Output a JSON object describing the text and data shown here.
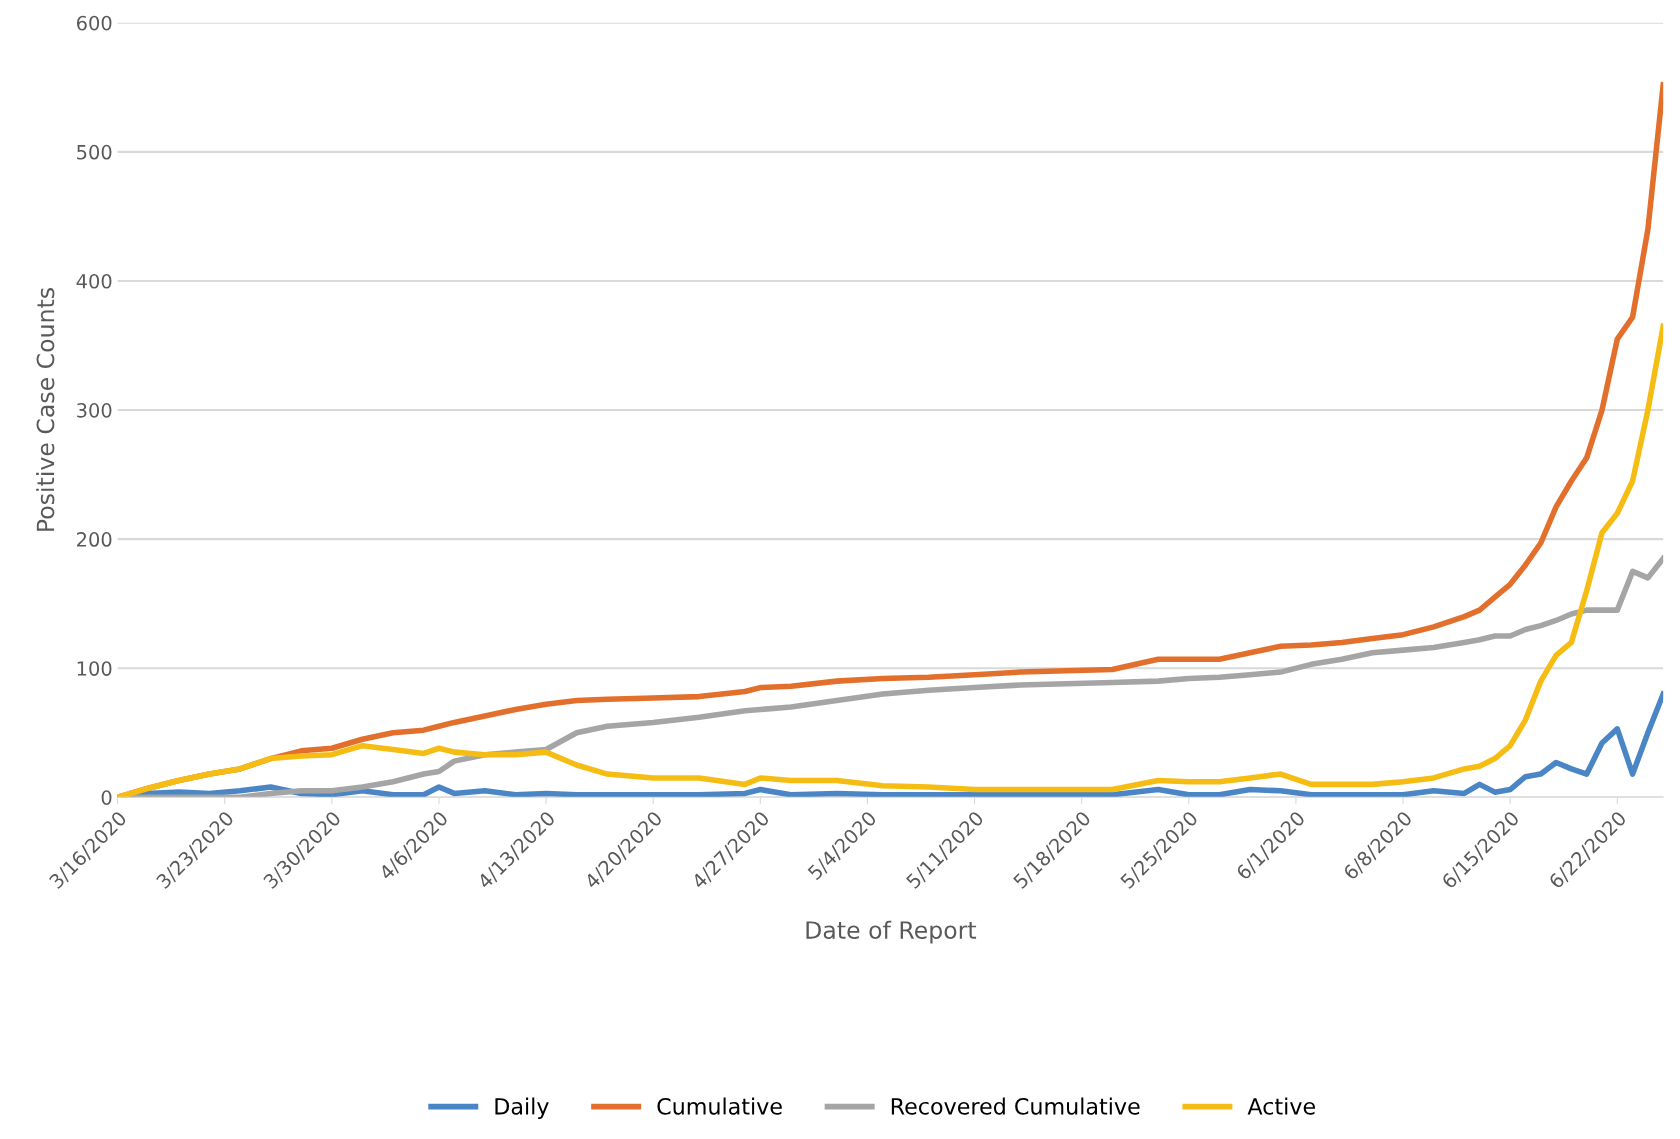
{
  "chart_data": {
    "type": "line",
    "xlabel": "Date of Report",
    "ylabel": "Positive Case Counts",
    "x": [
      "2020-03-16",
      "2020-03-18",
      "2020-03-20",
      "2020-03-22",
      "2020-03-24",
      "2020-03-26",
      "2020-03-28",
      "2020-03-30",
      "2020-04-01",
      "2020-04-03",
      "2020-04-05",
      "2020-04-06",
      "2020-04-07",
      "2020-04-09",
      "2020-04-11",
      "2020-04-13",
      "2020-04-15",
      "2020-04-17",
      "2020-04-20",
      "2020-04-23",
      "2020-04-26",
      "2020-04-27",
      "2020-04-29",
      "2020-05-02",
      "2020-05-05",
      "2020-05-08",
      "2020-05-11",
      "2020-05-14",
      "2020-05-17",
      "2020-05-20",
      "2020-05-23",
      "2020-05-25",
      "2020-05-27",
      "2020-05-29",
      "2020-05-31",
      "2020-06-02",
      "2020-06-04",
      "2020-06-06",
      "2020-06-08",
      "2020-06-10",
      "2020-06-12",
      "2020-06-13",
      "2020-06-14",
      "2020-06-15",
      "2020-06-16",
      "2020-06-17",
      "2020-06-18",
      "2020-06-19",
      "2020-06-20",
      "2020-06-21",
      "2020-06-22",
      "2020-06-23",
      "2020-06-24",
      "2020-06-25"
    ],
    "series": [
      {
        "name": "Daily",
        "color": "#4a86c5",
        "values": [
          0,
          3,
          4,
          3,
          5,
          8,
          3,
          2,
          5,
          2,
          2,
          8,
          3,
          5,
          2,
          3,
          2,
          2,
          2,
          2,
          3,
          6,
          2,
          3,
          2,
          2,
          2,
          2,
          2,
          2,
          6,
          2,
          2,
          6,
          5,
          2,
          2,
          2,
          2,
          5,
          3,
          10,
          4,
          6,
          16,
          18,
          27,
          22,
          18,
          42,
          53,
          18,
          50,
          80
        ]
      },
      {
        "name": "Cumulative",
        "color": "#e2702c",
        "values": [
          0,
          7,
          13,
          18,
          22,
          30,
          36,
          38,
          45,
          50,
          52,
          55,
          58,
          63,
          68,
          72,
          75,
          76,
          77,
          78,
          82,
          85,
          86,
          90,
          92,
          93,
          95,
          97,
          98,
          99,
          107,
          107,
          107,
          112,
          117,
          118,
          120,
          123,
          126,
          132,
          140,
          145,
          155,
          165,
          180,
          197,
          225,
          245,
          263,
          300,
          355,
          372,
          440,
          552
        ]
      },
      {
        "name": "Recovered Cumulative",
        "color": "#a5a5a5",
        "values": [
          0,
          0,
          0,
          0,
          0,
          3,
          5,
          5,
          8,
          12,
          18,
          20,
          28,
          33,
          35,
          37,
          50,
          55,
          58,
          62,
          67,
          68,
          70,
          75,
          80,
          83,
          85,
          87,
          88,
          89,
          90,
          92,
          93,
          95,
          97,
          103,
          107,
          112,
          114,
          116,
          120,
          122,
          125,
          125,
          130,
          133,
          137,
          142,
          145,
          145,
          145,
          175,
          170,
          185
        ]
      },
      {
        "name": "Active",
        "color": "#f5bd13",
        "values": [
          0,
          7,
          13,
          18,
          22,
          30,
          32,
          33,
          40,
          37,
          34,
          38,
          35,
          33,
          33,
          35,
          25,
          18,
          15,
          15,
          10,
          15,
          13,
          13,
          9,
          8,
          6,
          6,
          6,
          6,
          13,
          12,
          12,
          15,
          18,
          10,
          10,
          10,
          12,
          15,
          22,
          24,
          30,
          40,
          60,
          90,
          110,
          120,
          160,
          205,
          220,
          245,
          300,
          365
        ]
      }
    ],
    "xlim": [
      "2020-03-16",
      "2020-06-25"
    ],
    "xticks": [
      {
        "value": "2020-03-16",
        "label": "3/16/2020"
      },
      {
        "value": "2020-03-23",
        "label": "3/23/2020"
      },
      {
        "value": "2020-03-30",
        "label": "3/30/2020"
      },
      {
        "value": "2020-04-06",
        "label": "4/6/2020"
      },
      {
        "value": "2020-04-13",
        "label": "4/13/2020"
      },
      {
        "value": "2020-04-20",
        "label": "4/20/2020"
      },
      {
        "value": "2020-04-27",
        "label": "4/27/2020"
      },
      {
        "value": "2020-05-04",
        "label": "5/4/2020"
      },
      {
        "value": "2020-05-11",
        "label": "5/11/2020"
      },
      {
        "value": "2020-05-18",
        "label": "5/18/2020"
      },
      {
        "value": "2020-05-25",
        "label": "5/25/2020"
      },
      {
        "value": "2020-06-01",
        "label": "6/1/2020"
      },
      {
        "value": "2020-06-08",
        "label": "6/8/2020"
      },
      {
        "value": "2020-06-15",
        "label": "6/15/2020"
      },
      {
        "value": "2020-06-22",
        "label": "6/22/2020"
      }
    ],
    "ylim": [
      0,
      600
    ],
    "yticks": [
      0,
      100,
      200,
      300,
      400,
      500,
      600
    ],
    "grid": "y",
    "legend": "bottom",
    "marker": "none",
    "line_style": "solid"
  }
}
